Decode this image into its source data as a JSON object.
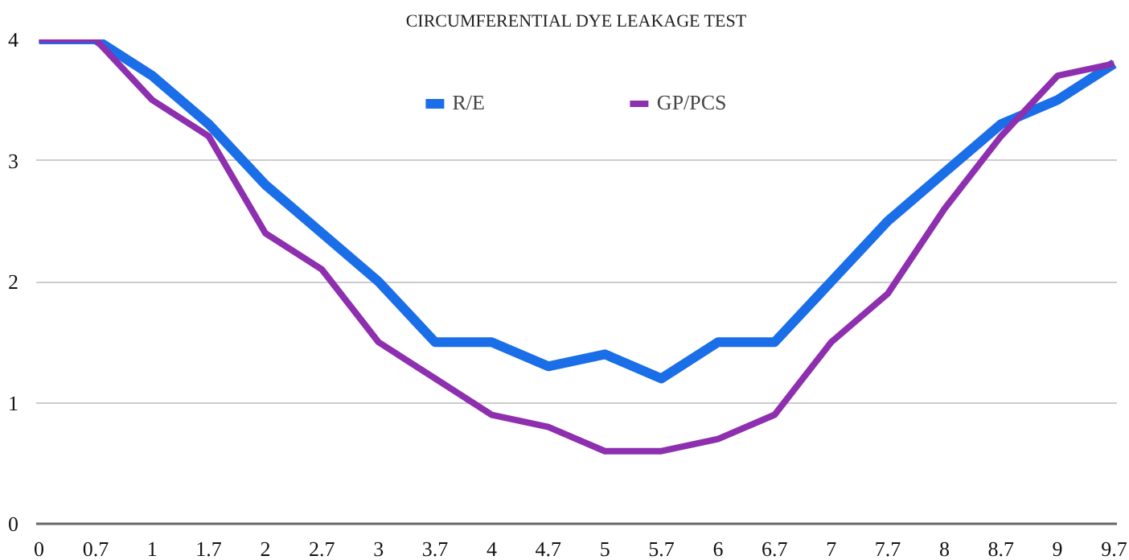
{
  "chart_data": {
    "type": "line",
    "title": "CIRCUMFERENTIAL DYE LEAKAGE TEST",
    "categories": [
      "0",
      "0.7",
      "1",
      "1.7",
      "2",
      "2.7",
      "3",
      "3.7",
      "4",
      "4.7",
      "5",
      "5.7",
      "6",
      "6.7",
      "7",
      "7.7",
      "8",
      "8.7",
      "9",
      "9.7"
    ],
    "series": [
      {
        "name": "R/E",
        "color": "#1a6ee8",
        "values": [
          4,
          4,
          3.7,
          3.3,
          2.8,
          2.4,
          2.0,
          1.5,
          1.5,
          1.3,
          1.4,
          1.2,
          1.5,
          1.5,
          2.0,
          2.5,
          2.9,
          3.3,
          3.5,
          3.8
        ]
      },
      {
        "name": "GP/PCS",
        "color": "#8e2fb0",
        "values": [
          4,
          4,
          3.5,
          3.2,
          2.4,
          2.1,
          1.5,
          1.2,
          0.9,
          0.8,
          0.6,
          0.6,
          0.7,
          0.9,
          1.5,
          1.9,
          2.6,
          3.2,
          3.7,
          3.8
        ]
      }
    ],
    "ylim": [
      0,
      4
    ],
    "yticks": [
      0,
      1,
      2,
      3,
      4
    ],
    "grid": "y",
    "legend": "top",
    "line_style": "solid",
    "marker": "none"
  }
}
